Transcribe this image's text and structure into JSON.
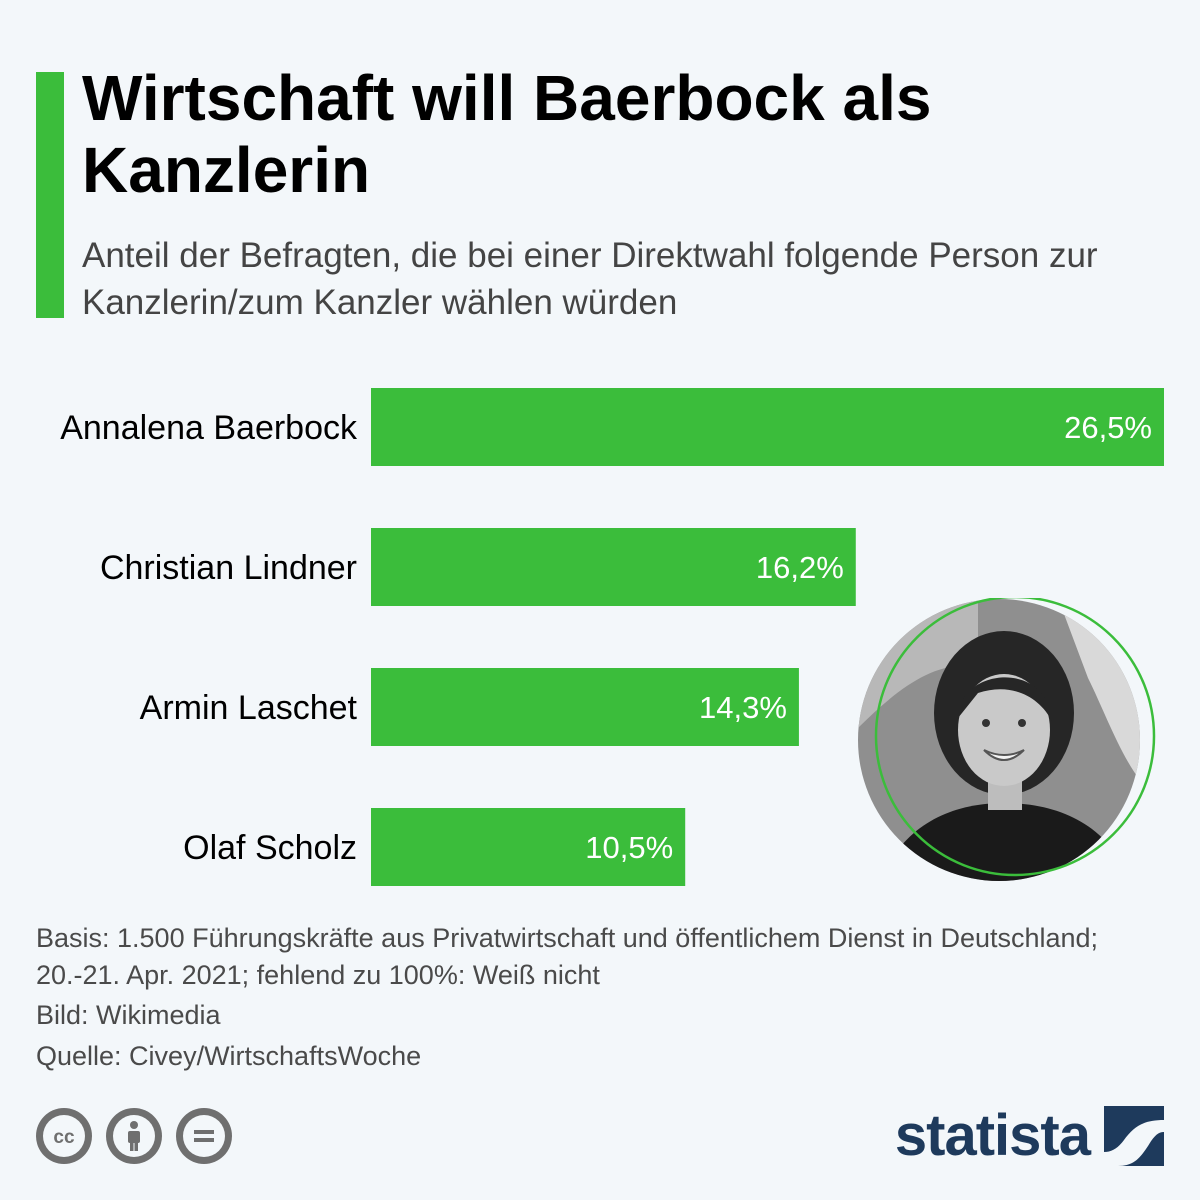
{
  "header": {
    "title": "Wirtschaft will Baerbock als Kanzlerin",
    "subtitle": "Anteil der Befragten, die bei einer Direktwahl folgende Person zur Kanzlerin/zum Kanzler wählen würden"
  },
  "chart_data": {
    "type": "bar",
    "orientation": "horizontal",
    "categories": [
      "Annalena Baerbock",
      "Christian Lindner",
      "Armin Laschet",
      "Olaf Scholz"
    ],
    "values": [
      26.5,
      16.2,
      14.3,
      10.5
    ],
    "value_labels": [
      "26,5%",
      "16,2%",
      "14,3%",
      "10,5%"
    ],
    "unit": "%",
    "xlim": [
      0,
      26.5
    ],
    "grid": false,
    "legend": "none",
    "bar_color": "#3bbd3b"
  },
  "footer": {
    "basis": "Basis: 1.500 Führungskräfte aus Privatwirtschaft und öffentlichem Dienst in Deutschland; 20.-21. Apr. 2021; fehlend zu 100%: Weiß nicht",
    "image_credit": "Bild: Wikimedia",
    "source": "Quelle: Civey/WirtschaftsWoche",
    "license_icons": [
      "creative-commons-icon",
      "attribution-icon",
      "no-derivatives-icon"
    ],
    "brand": "statista"
  },
  "colors": {
    "accent": "#3bbd3b",
    "background": "#f3f7fa",
    "brand": "#1e3a5c"
  }
}
